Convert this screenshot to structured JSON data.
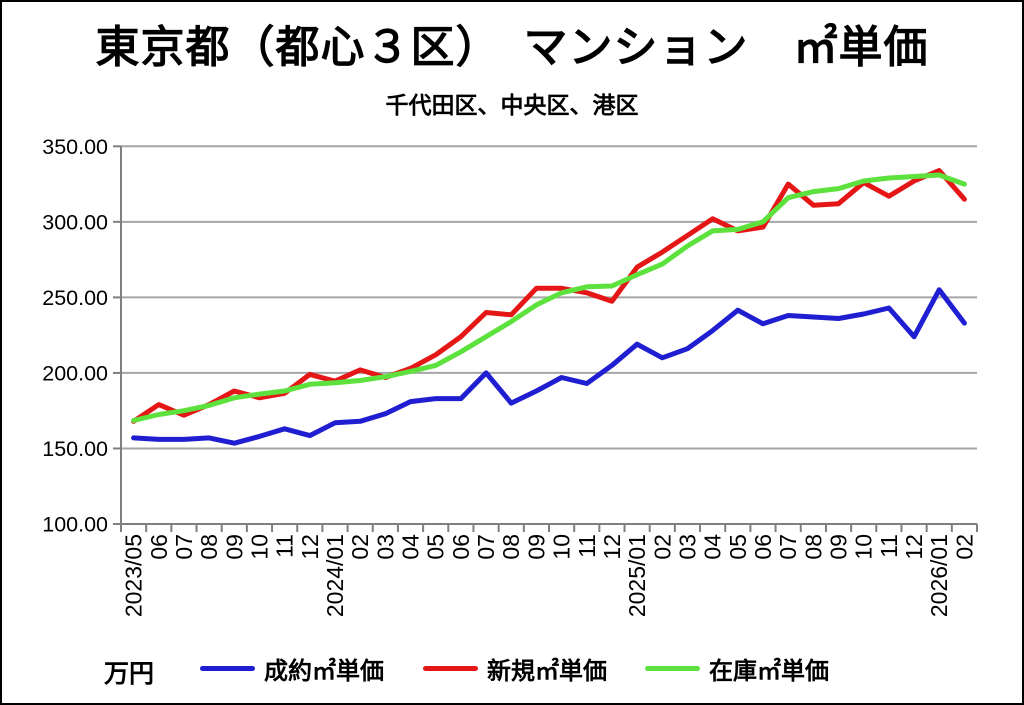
{
  "title": "東京都（都心３区）　マンション　㎡単価",
  "subtitle": "千代田区、中央区、港区",
  "unit_label": "万円",
  "chart_data": {
    "type": "line",
    "title": "東京都（都心３区）　マンション　㎡単価",
    "subtitle": "千代田区、中央区、港区",
    "y_unit": "万円",
    "ylim": [
      100,
      350
    ],
    "y_ticks": [
      100,
      150,
      200,
      250,
      300,
      350
    ],
    "y_tick_decimals": 2,
    "grid": "horizontal",
    "legend_position": "bottom",
    "categories": [
      "2023/05",
      "06",
      "07",
      "08",
      "09",
      "10",
      "11",
      "12",
      "2024/01",
      "02",
      "03",
      "04",
      "05",
      "06",
      "07",
      "08",
      "09",
      "10",
      "11",
      "12",
      "2025/01",
      "02",
      "03",
      "04",
      "05",
      "06",
      "07",
      "08",
      "09",
      "10",
      "11",
      "12",
      "2026/01",
      "02"
    ],
    "series": [
      {
        "name": "成約㎡単価",
        "color": "#1f1fd1",
        "values": [
          157,
          156,
          156,
          157,
          153.5,
          158,
          163,
          158.5,
          167,
          168,
          173,
          181,
          183,
          183,
          200,
          180,
          188,
          197,
          193,
          205,
          219,
          210,
          216,
          228,
          241.5,
          232.5,
          238,
          237,
          236,
          239,
          243,
          224,
          255,
          233
        ]
      },
      {
        "name": "新規㎡単価",
        "color": "#e51616",
        "values": [
          168,
          179,
          172,
          179,
          188,
          183.5,
          186.5,
          199,
          194.5,
          202,
          197,
          203,
          212,
          224,
          240,
          238.5,
          256,
          256,
          253,
          247.5,
          270,
          280,
          291,
          302,
          294,
          296.5,
          325,
          311,
          312,
          326,
          317,
          327,
          334,
          315
        ]
      },
      {
        "name": "在庫㎡単価",
        "color": "#5de13d",
        "values": [
          168.5,
          172.5,
          175,
          178.5,
          183.5,
          186,
          188,
          192.5,
          193.5,
          195,
          197.5,
          201,
          205,
          214,
          224,
          234,
          245,
          253,
          257,
          257.5,
          265,
          272,
          284,
          294,
          295,
          300,
          316,
          320,
          322,
          327,
          329,
          330,
          331,
          325
        ]
      }
    ],
    "colors": {
      "gridline": "#a6a6a6",
      "axis": "#7f7f7f",
      "text": "#000000"
    }
  }
}
